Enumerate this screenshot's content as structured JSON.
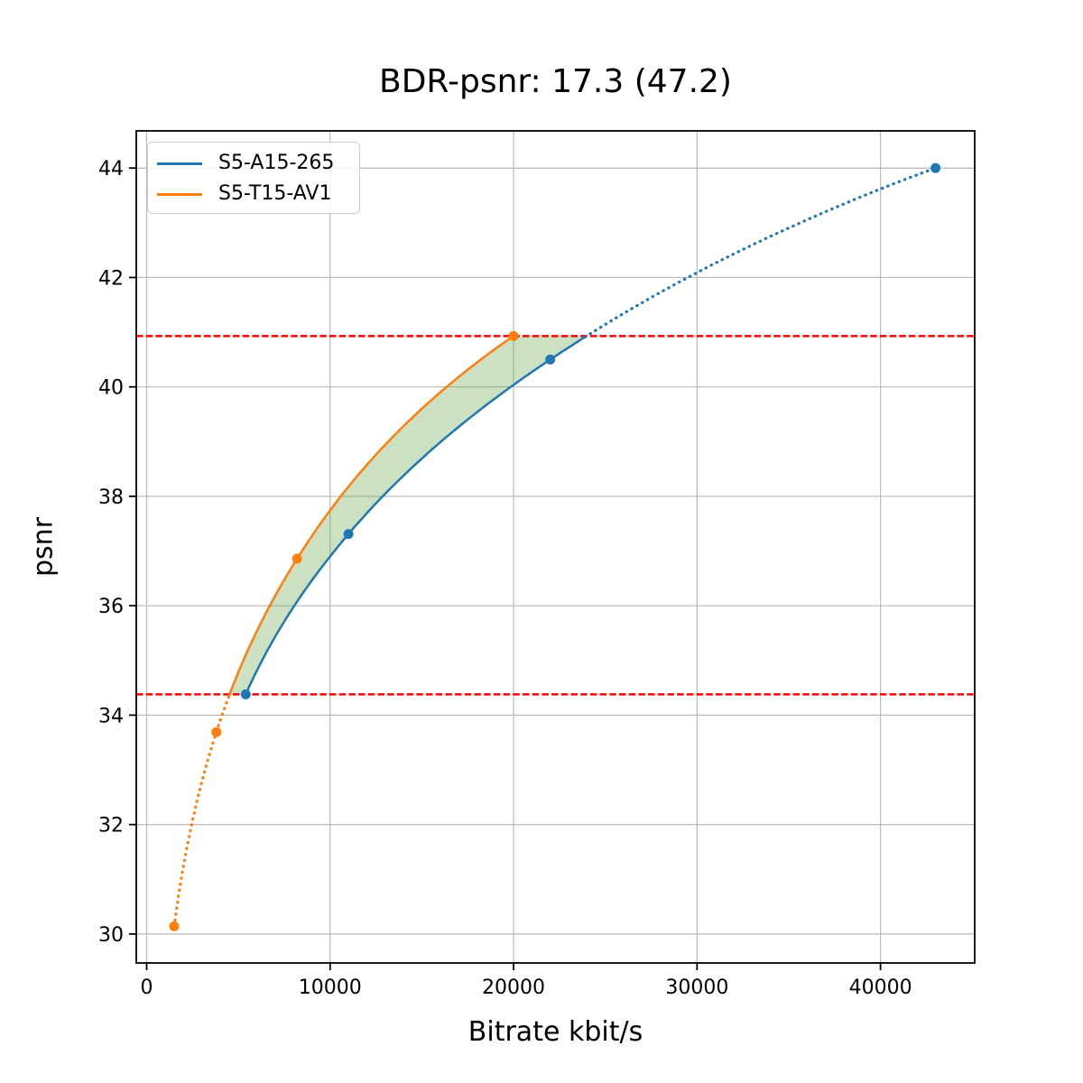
{
  "chart_data": {
    "type": "line",
    "title": "BDR-psnr: 17.3 (47.2)",
    "bdr": {
      "value": 17.3,
      "secondary_value": 47.2,
      "metric": "psnr"
    },
    "xlabel": "Bitrate kbit/s",
    "ylabel": "psnr",
    "xlim": [
      -566,
      45135
    ],
    "ylim": [
      29.47,
      44.68
    ],
    "x_ticks": [
      0,
      10000,
      20000,
      30000,
      40000
    ],
    "y_ticks": [
      30,
      32,
      34,
      36,
      38,
      40,
      42,
      44
    ],
    "grid": true,
    "legend_position": "upper left",
    "style": {
      "grid_color": "#b9b9b9",
      "spine_color": "#000000",
      "background_color": "#ffffff",
      "text_color": "#000000"
    },
    "series": [
      {
        "name": "S5-A15-265",
        "color": "#1f77b4",
        "marker": "circle",
        "points": [
          [
            5400,
            34.38
          ],
          [
            11000,
            37.31
          ],
          [
            22000,
            40.5
          ],
          [
            43000,
            44.0
          ]
        ],
        "solid_bitrate_range": [
          5400,
          23900
        ]
      },
      {
        "name": "S5-T15-AV1",
        "color": "#ff7f0e",
        "marker": "circle",
        "points": [
          [
            1500,
            30.14
          ],
          [
            3800,
            33.69
          ],
          [
            8200,
            36.86
          ],
          [
            20000,
            40.93
          ]
        ],
        "solid_bitrate_range": [
          4490,
          20000
        ]
      }
    ],
    "reference_lines": [
      {
        "psnr": 34.38,
        "color": "#ff0000",
        "style": "dashed"
      },
      {
        "psnr": 40.93,
        "color": "#ff0000",
        "style": "dashed"
      }
    ],
    "shaded_region": {
      "upper_series": "S5-T15-AV1",
      "lower_series": "S5-A15-265",
      "psnr_range": [
        34.38,
        40.93
      ],
      "upper_bitrate_range": [
        4490,
        20000
      ],
      "lower_bitrate_range": [
        5400,
        23900
      ],
      "color": "#6aa84f",
      "opacity": 0.35
    }
  }
}
